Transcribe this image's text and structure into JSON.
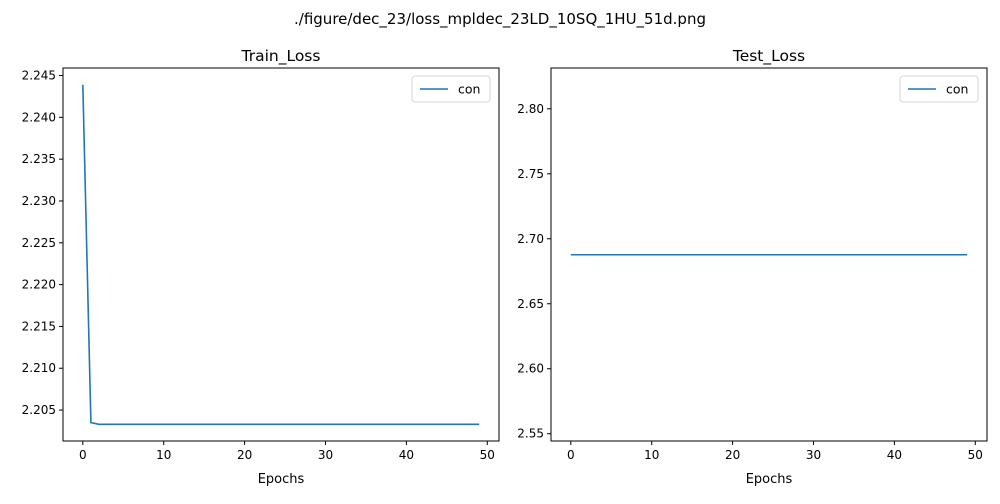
{
  "figure_title": "./figure/dec_23/loss_mpldec_23LD_10SQ_1HU_51d.png",
  "chart_data": [
    {
      "type": "line",
      "title": "Train_Loss",
      "xlabel": "Epochs",
      "ylabel": "",
      "xlim": [
        -2.45,
        51.45
      ],
      "ylim": [
        2.2013,
        2.2459
      ],
      "xticks": [
        "0",
        "10",
        "20",
        "30",
        "40",
        "50"
      ],
      "yticks": [
        "2.205",
        "2.210",
        "2.215",
        "2.220",
        "2.225",
        "2.230",
        "2.235",
        "2.240",
        "2.245"
      ],
      "legend": "upper right",
      "series": [
        {
          "name": "con",
          "color": "#1f77b4",
          "x": [
            0,
            1,
            2,
            3,
            4,
            5,
            6,
            7,
            8,
            9,
            10,
            11,
            12,
            13,
            14,
            15,
            16,
            17,
            18,
            19,
            20,
            21,
            22,
            23,
            24,
            25,
            26,
            27,
            28,
            29,
            30,
            31,
            32,
            33,
            34,
            35,
            36,
            37,
            38,
            39,
            40,
            41,
            42,
            43,
            44,
            45,
            46,
            47,
            48,
            49
          ],
          "y": [
            2.2439,
            2.2035,
            2.2033,
            2.2033,
            2.2033,
            2.2033,
            2.2033,
            2.2033,
            2.2033,
            2.2033,
            2.2033,
            2.2033,
            2.2033,
            2.2033,
            2.2033,
            2.2033,
            2.2033,
            2.2033,
            2.2033,
            2.2033,
            2.2033,
            2.2033,
            2.2033,
            2.2033,
            2.2033,
            2.2033,
            2.2033,
            2.2033,
            2.2033,
            2.2033,
            2.2033,
            2.2033,
            2.2033,
            2.2033,
            2.2033,
            2.2033,
            2.2033,
            2.2033,
            2.2033,
            2.2033,
            2.2033,
            2.2033,
            2.2033,
            2.2033,
            2.2033,
            2.2033,
            2.2033,
            2.2033,
            2.2033,
            2.2033
          ]
        }
      ]
    },
    {
      "type": "line",
      "title": "Test_Loss",
      "xlabel": "Epochs",
      "ylabel": "",
      "xlim": [
        -2.45,
        51.45
      ],
      "ylim": [
        2.5444,
        2.8314
      ],
      "xticks": [
        "0",
        "10",
        "20",
        "30",
        "40",
        "50"
      ],
      "yticks": [
        "2.55",
        "2.60",
        "2.65",
        "2.70",
        "2.75",
        "2.80"
      ],
      "legend": "upper right",
      "series": [
        {
          "name": "con",
          "color": "#1f77b4",
          "x": [
            0,
            1,
            2,
            3,
            4,
            5,
            6,
            7,
            8,
            9,
            10,
            11,
            12,
            13,
            14,
            15,
            16,
            17,
            18,
            19,
            20,
            21,
            22,
            23,
            24,
            25,
            26,
            27,
            28,
            29,
            30,
            31,
            32,
            33,
            34,
            35,
            36,
            37,
            38,
            39,
            40,
            41,
            42,
            43,
            44,
            45,
            46,
            47,
            48,
            49
          ],
          "y": [
            2.6877,
            2.6877,
            2.6877,
            2.6877,
            2.6877,
            2.6877,
            2.6877,
            2.6877,
            2.6877,
            2.6877,
            2.6877,
            2.6877,
            2.6877,
            2.6877,
            2.6877,
            2.6877,
            2.6877,
            2.6877,
            2.6877,
            2.6877,
            2.6877,
            2.6877,
            2.6877,
            2.6877,
            2.6877,
            2.6877,
            2.6877,
            2.6877,
            2.6877,
            2.6877,
            2.6877,
            2.6877,
            2.6877,
            2.6877,
            2.6877,
            2.6877,
            2.6877,
            2.6877,
            2.6877,
            2.6877,
            2.6877,
            2.6877,
            2.6877,
            2.6877,
            2.6877,
            2.6877,
            2.6877,
            2.6877,
            2.6877,
            2.6877
          ]
        }
      ]
    }
  ]
}
